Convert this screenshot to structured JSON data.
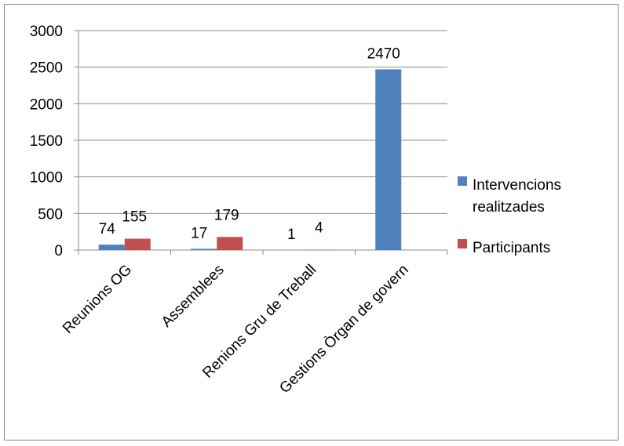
{
  "chart_data": {
    "type": "bar",
    "categories": [
      "Reunions OG",
      "Assemblees",
      "Renions Gru de Treball",
      "Gestions Òrgan de govern"
    ],
    "series": [
      {
        "name": "Intervencions realitzades",
        "legend_lines": [
          "Intervencions",
          "realitzades"
        ],
        "values": [
          74,
          17,
          1,
          2470
        ],
        "color": "#4f81bd"
      },
      {
        "name": "Participants",
        "legend_lines": [
          "Participants"
        ],
        "values": [
          155,
          179,
          4,
          0
        ],
        "color": "#c0504d"
      }
    ],
    "data_labels": [
      [
        "74",
        "17",
        "1",
        "2470"
      ],
      [
        "155",
        "179",
        "4",
        ""
      ]
    ],
    "yticks": [
      "0",
      "500",
      "1000",
      "1500",
      "2000",
      "2500",
      "3000"
    ],
    "ylim": [
      0,
      3000
    ],
    "grid": true,
    "legend_position": "right",
    "title": "",
    "xlabel": "",
    "ylabel": ""
  }
}
